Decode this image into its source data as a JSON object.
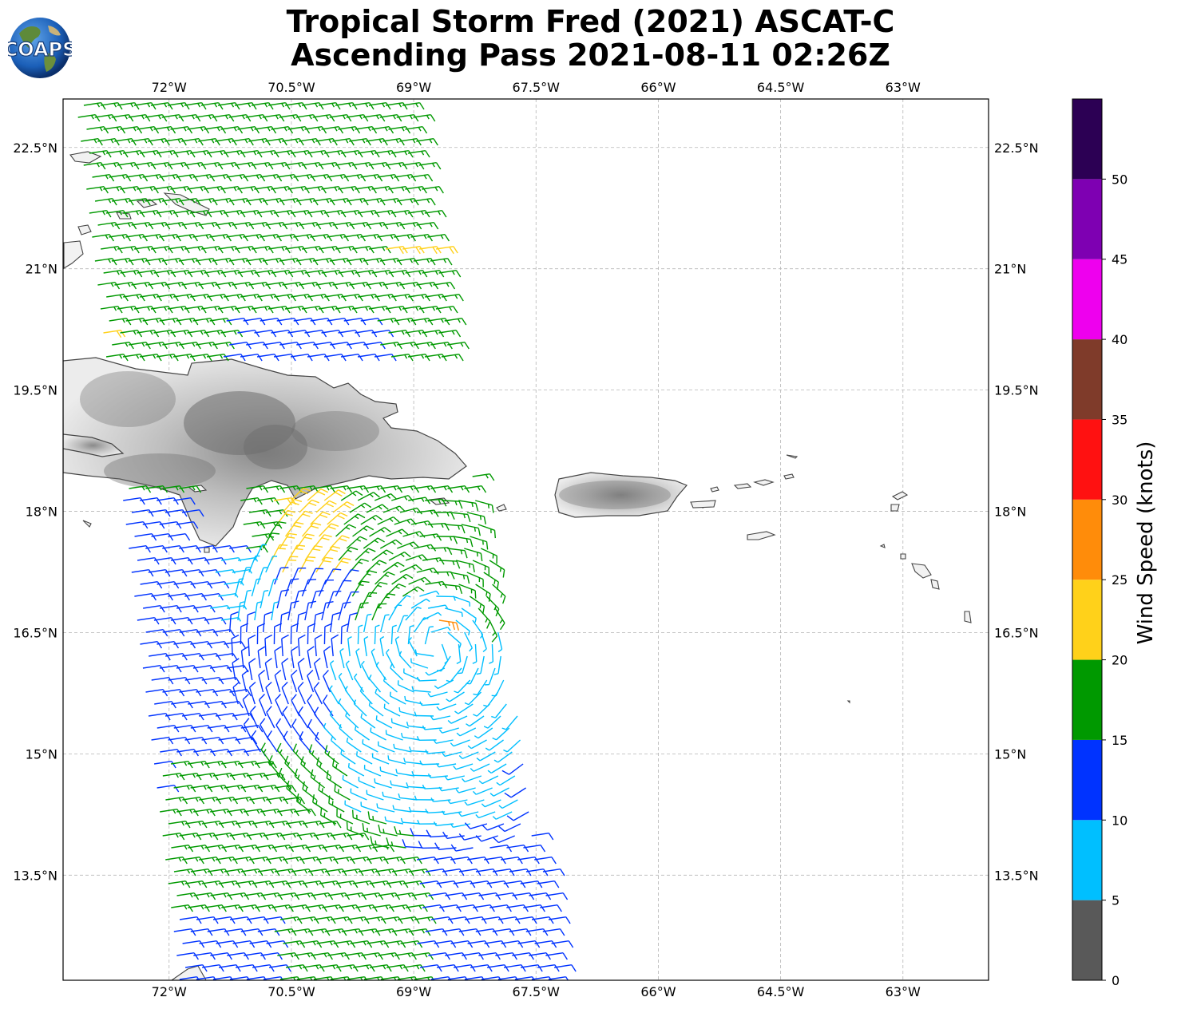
{
  "title": {
    "line1": "Tropical Storm Fred (2021) ASCAT-C",
    "line2": "Ascending Pass 2021-08-11 02:26Z"
  },
  "logo": {
    "text": "COAPS",
    "icon": "globe-logo-icon"
  },
  "map": {
    "projection": "plate-carree",
    "lon_range": [
      -73.3,
      -61.95
    ],
    "lat_range": [
      12.2,
      23.1
    ],
    "gridlines": true,
    "lon_ticks": [
      "72°W",
      "70.5°W",
      "69°W",
      "67.5°W",
      "66°W",
      "64.5°W",
      "63°W"
    ],
    "lon_tick_values": [
      -72,
      -70.5,
      -69,
      -67.5,
      -66,
      -64.5,
      -63
    ],
    "lat_ticks": [
      "22.5°N",
      "21°N",
      "19.5°N",
      "18°N",
      "16.5°N",
      "15°N",
      "13.5°N"
    ],
    "lat_tick_values": [
      22.5,
      21,
      19.5,
      18,
      16.5,
      15,
      13.5
    ]
  },
  "colorbar": {
    "label": "Wind Speed (knots)",
    "ticks": [
      "0",
      "5",
      "10",
      "15",
      "20",
      "25",
      "30",
      "35",
      "40",
      "45",
      "50"
    ],
    "bins": [
      {
        "from": 0,
        "to": 5,
        "color": "#595959"
      },
      {
        "from": 5,
        "to": 10,
        "color": "#00bfff"
      },
      {
        "from": 10,
        "to": 15,
        "color": "#0033ff"
      },
      {
        "from": 15,
        "to": 20,
        "color": "#009900"
      },
      {
        "from": 20,
        "to": 25,
        "color": "#ffd11a"
      },
      {
        "from": 25,
        "to": 30,
        "color": "#ff8c0a"
      },
      {
        "from": 30,
        "to": 35,
        "color": "#ff1111"
      },
      {
        "from": 35,
        "to": 40,
        "color": "#7f3b2a"
      },
      {
        "from": 40,
        "to": 45,
        "color": "#ee00ee"
      },
      {
        "from": 45,
        "to": 50,
        "color": "#7e00b2"
      },
      {
        "from": 50,
        "to": 55,
        "color": "#2c0054"
      }
    ]
  },
  "wind_field": {
    "description_units": "knots",
    "regions": [
      {
        "name": "north-atlantic-green",
        "speed_kt": 17,
        "direction": "easterly"
      },
      {
        "name": "north-hispaniola-blue",
        "speed_kt": 13,
        "direction": "easterly"
      },
      {
        "name": "mona-passage-green",
        "speed_kt": 17,
        "direction": "southeasterly"
      },
      {
        "name": "caribbean-blue",
        "speed_kt": 12,
        "direction": "easterly"
      },
      {
        "name": "storm-center-cyan",
        "speed_kt": 8,
        "direction": "cyclonic"
      },
      {
        "name": "south-caribbean-green",
        "speed_kt": 17,
        "direction": "easterly"
      },
      {
        "name": "yellow-patches",
        "speed_kt": 22,
        "direction": "southeasterly"
      },
      {
        "name": "orange-barb",
        "speed_kt": 27,
        "direction": "southerly"
      }
    ]
  }
}
